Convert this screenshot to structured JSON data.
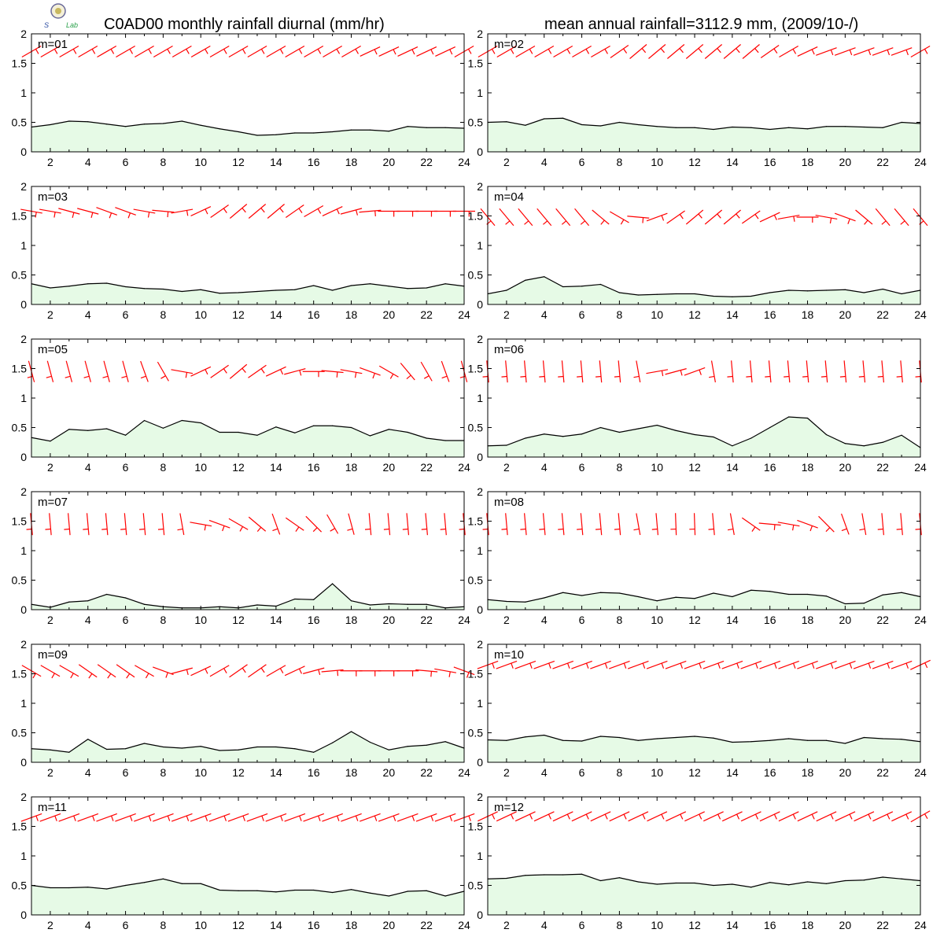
{
  "header": {
    "title_left": "C0AD00 monthly rainfall diurnal (mm/hr)",
    "title_right": "mean annual rainfall=3112.9 mm, (2009/10-/)",
    "logo_text": "Lab"
  },
  "colors": {
    "fill": "#e6fae6",
    "line": "#000000",
    "wind": "#ff0000",
    "frame": "#000000"
  },
  "chart_data": [
    {
      "type": "area",
      "label": "m=01",
      "x": [
        1,
        2,
        3,
        4,
        5,
        6,
        7,
        8,
        9,
        10,
        11,
        12,
        13,
        14,
        15,
        16,
        17,
        18,
        19,
        20,
        21,
        22,
        23,
        24
      ],
      "values": [
        0.42,
        0.46,
        0.52,
        0.51,
        0.47,
        0.43,
        0.47,
        0.48,
        0.52,
        0.45,
        0.39,
        0.34,
        0.28,
        0.29,
        0.32,
        0.32,
        0.34,
        0.37,
        0.37,
        0.35,
        0.43,
        0.41,
        0.41,
        0.4
      ],
      "wind_dir": [
        60,
        60,
        60,
        60,
        60,
        60,
        60,
        60,
        60,
        60,
        60,
        60,
        60,
        60,
        60,
        60,
        60,
        60,
        65,
        65,
        65,
        65,
        65,
        60
      ],
      "wind_y": 1.7,
      "xlim": [
        1,
        24
      ],
      "ylim": [
        0,
        2
      ]
    },
    {
      "type": "area",
      "label": "m=02",
      "x": [
        1,
        2,
        3,
        4,
        5,
        6,
        7,
        8,
        9,
        10,
        11,
        12,
        13,
        14,
        15,
        16,
        17,
        18,
        19,
        20,
        21,
        22,
        23,
        24
      ],
      "values": [
        0.5,
        0.51,
        0.45,
        0.56,
        0.57,
        0.46,
        0.44,
        0.5,
        0.46,
        0.43,
        0.41,
        0.41,
        0.38,
        0.42,
        0.41,
        0.38,
        0.41,
        0.39,
        0.43,
        0.43,
        0.42,
        0.41,
        0.5,
        0.48
      ],
      "wind_dir": [
        60,
        60,
        60,
        60,
        60,
        60,
        60,
        55,
        50,
        50,
        50,
        50,
        50,
        50,
        50,
        55,
        60,
        65,
        70,
        70,
        70,
        70,
        70,
        60
      ],
      "wind_y": 1.7,
      "xlim": [
        1,
        24
      ],
      "ylim": [
        0,
        2
      ]
    },
    {
      "type": "area",
      "label": "m=03",
      "x": [
        1,
        2,
        3,
        4,
        5,
        6,
        7,
        8,
        9,
        10,
        11,
        12,
        13,
        14,
        15,
        16,
        17,
        18,
        19,
        20,
        21,
        22,
        23,
        24
      ],
      "values": [
        0.35,
        0.28,
        0.31,
        0.35,
        0.36,
        0.3,
        0.27,
        0.26,
        0.22,
        0.25,
        0.19,
        0.2,
        0.22,
        0.24,
        0.25,
        0.32,
        0.24,
        0.32,
        0.35,
        0.31,
        0.27,
        0.28,
        0.35,
        0.31
      ],
      "wind_dir": [
        100,
        100,
        105,
        105,
        110,
        110,
        100,
        95,
        80,
        65,
        55,
        50,
        50,
        50,
        55,
        60,
        65,
        75,
        85,
        90,
        90,
        90,
        90,
        90
      ],
      "wind_y": 1.58,
      "xlim": [
        1,
        24
      ],
      "ylim": [
        0,
        2
      ]
    },
    {
      "type": "area",
      "label": "m=04",
      "x": [
        1,
        2,
        3,
        4,
        5,
        6,
        7,
        8,
        9,
        10,
        11,
        12,
        13,
        14,
        15,
        16,
        17,
        18,
        19,
        20,
        21,
        22,
        23,
        24
      ],
      "values": [
        0.18,
        0.24,
        0.41,
        0.47,
        0.3,
        0.31,
        0.34,
        0.2,
        0.16,
        0.17,
        0.18,
        0.18,
        0.14,
        0.13,
        0.14,
        0.2,
        0.24,
        0.23,
        0.24,
        0.25,
        0.2,
        0.26,
        0.18,
        0.24
      ],
      "wind_dir": [
        140,
        140,
        140,
        140,
        140,
        140,
        130,
        120,
        95,
        70,
        55,
        50,
        50,
        50,
        55,
        65,
        80,
        90,
        100,
        110,
        130,
        140,
        140,
        140
      ],
      "wind_y": 1.48,
      "xlim": [
        1,
        24
      ],
      "ylim": [
        0,
        2
      ]
    },
    {
      "type": "area",
      "label": "m=05",
      "x": [
        1,
        2,
        3,
        4,
        5,
        6,
        7,
        8,
        9,
        10,
        11,
        12,
        13,
        14,
        15,
        16,
        17,
        18,
        19,
        20,
        21,
        22,
        23,
        24
      ],
      "values": [
        0.33,
        0.27,
        0.47,
        0.45,
        0.48,
        0.37,
        0.62,
        0.49,
        0.62,
        0.58,
        0.42,
        0.42,
        0.37,
        0.51,
        0.41,
        0.53,
        0.53,
        0.5,
        0.36,
        0.47,
        0.42,
        0.32,
        0.28,
        0.28
      ],
      "wind_dir": [
        165,
        165,
        165,
        165,
        165,
        165,
        160,
        150,
        100,
        65,
        55,
        50,
        55,
        65,
        75,
        90,
        95,
        100,
        110,
        120,
        140,
        150,
        160,
        165
      ],
      "wind_y": 1.45,
      "xlim": [
        1,
        24
      ],
      "ylim": [
        0,
        2
      ]
    },
    {
      "type": "area",
      "label": "m=06",
      "x": [
        1,
        2,
        3,
        4,
        5,
        6,
        7,
        8,
        9,
        10,
        11,
        12,
        13,
        14,
        15,
        16,
        17,
        18,
        19,
        20,
        21,
        22,
        23,
        24
      ],
      "values": [
        0.19,
        0.2,
        0.32,
        0.39,
        0.35,
        0.39,
        0.5,
        0.42,
        0.48,
        0.54,
        0.45,
        0.38,
        0.34,
        0.19,
        0.32,
        0.5,
        0.68,
        0.66,
        0.38,
        0.23,
        0.19,
        0.25,
        0.37,
        0.16
      ],
      "wind_dir": [
        175,
        175,
        175,
        175,
        175,
        175,
        175,
        175,
        170,
        80,
        75,
        70,
        170,
        175,
        175,
        175,
        175,
        175,
        175,
        175,
        175,
        175,
        175,
        175
      ],
      "wind_y": 1.45,
      "xlim": [
        1,
        24
      ],
      "ylim": [
        0,
        2
      ]
    },
    {
      "type": "area",
      "label": "m=07",
      "x": [
        1,
        2,
        3,
        4,
        5,
        6,
        7,
        8,
        9,
        10,
        11,
        12,
        13,
        14,
        15,
        16,
        17,
        18,
        19,
        20,
        21,
        22,
        23,
        24
      ],
      "values": [
        0.09,
        0.04,
        0.13,
        0.15,
        0.26,
        0.2,
        0.09,
        0.05,
        0.03,
        0.03,
        0.05,
        0.03,
        0.08,
        0.06,
        0.18,
        0.17,
        0.44,
        0.15,
        0.08,
        0.1,
        0.09,
        0.09,
        0.03,
        0.05
      ],
      "wind_dir": [
        175,
        175,
        175,
        175,
        175,
        175,
        175,
        175,
        170,
        100,
        110,
        120,
        130,
        160,
        125,
        135,
        150,
        165,
        175,
        175,
        175,
        175,
        175,
        175
      ],
      "wind_y": 1.45,
      "xlim": [
        1,
        24
      ],
      "ylim": [
        0,
        2
      ]
    },
    {
      "type": "area",
      "label": "m=08",
      "x": [
        1,
        2,
        3,
        4,
        5,
        6,
        7,
        8,
        9,
        10,
        11,
        12,
        13,
        14,
        15,
        16,
        17,
        18,
        19,
        20,
        21,
        22,
        23,
        24
      ],
      "values": [
        0.17,
        0.14,
        0.13,
        0.2,
        0.29,
        0.24,
        0.29,
        0.28,
        0.22,
        0.15,
        0.21,
        0.19,
        0.28,
        0.22,
        0.33,
        0.31,
        0.26,
        0.26,
        0.23,
        0.1,
        0.11,
        0.25,
        0.29,
        0.22
      ],
      "wind_dir": [
        175,
        175,
        175,
        175,
        175,
        175,
        175,
        175,
        170,
        175,
        178,
        178,
        175,
        170,
        125,
        95,
        100,
        110,
        135,
        160,
        170,
        175,
        175,
        175
      ],
      "wind_y": 1.45,
      "xlim": [
        1,
        24
      ],
      "ylim": [
        0,
        2
      ]
    },
    {
      "type": "area",
      "label": "m=09",
      "x": [
        1,
        2,
        3,
        4,
        5,
        6,
        7,
        8,
        9,
        10,
        11,
        12,
        13,
        14,
        15,
        16,
        17,
        18,
        19,
        20,
        21,
        22,
        23,
        24
      ],
      "values": [
        0.23,
        0.21,
        0.17,
        0.39,
        0.22,
        0.23,
        0.32,
        0.26,
        0.24,
        0.27,
        0.2,
        0.21,
        0.26,
        0.26,
        0.23,
        0.17,
        0.33,
        0.52,
        0.34,
        0.21,
        0.27,
        0.29,
        0.35,
        0.24
      ],
      "wind_dir": [
        120,
        120,
        120,
        125,
        125,
        125,
        120,
        110,
        75,
        65,
        60,
        55,
        55,
        60,
        65,
        75,
        85,
        90,
        90,
        90,
        90,
        95,
        100,
        110
      ],
      "wind_y": 1.55,
      "xlim": [
        1,
        24
      ],
      "ylim": [
        0,
        2
      ]
    },
    {
      "type": "area",
      "label": "m=10",
      "x": [
        1,
        2,
        3,
        4,
        5,
        6,
        7,
        8,
        9,
        10,
        11,
        12,
        13,
        14,
        15,
        16,
        17,
        18,
        19,
        20,
        21,
        22,
        23,
        24
      ],
      "values": [
        0.38,
        0.37,
        0.43,
        0.46,
        0.37,
        0.36,
        0.44,
        0.42,
        0.37,
        0.4,
        0.42,
        0.44,
        0.41,
        0.34,
        0.35,
        0.37,
        0.4,
        0.37,
        0.37,
        0.32,
        0.42,
        0.4,
        0.39,
        0.35
      ],
      "wind_dir": [
        70,
        70,
        70,
        70,
        70,
        70,
        70,
        70,
        70,
        70,
        70,
        70,
        70,
        70,
        70,
        70,
        70,
        70,
        70,
        70,
        70,
        70,
        70,
        65
      ],
      "wind_y": 1.65,
      "xlim": [
        1,
        24
      ],
      "ylim": [
        0,
        2
      ]
    },
    {
      "type": "area",
      "label": "m=11",
      "x": [
        1,
        2,
        3,
        4,
        5,
        6,
        7,
        8,
        9,
        10,
        11,
        12,
        13,
        14,
        15,
        16,
        17,
        18,
        19,
        20,
        21,
        22,
        23,
        24
      ],
      "values": [
        0.5,
        0.46,
        0.46,
        0.47,
        0.44,
        0.5,
        0.55,
        0.61,
        0.53,
        0.53,
        0.42,
        0.41,
        0.41,
        0.39,
        0.42,
        0.42,
        0.38,
        0.43,
        0.37,
        0.32,
        0.4,
        0.41,
        0.32,
        0.4
      ],
      "wind_dir": [
        70,
        70,
        70,
        70,
        70,
        70,
        70,
        70,
        70,
        70,
        70,
        70,
        70,
        70,
        70,
        70,
        70,
        70,
        70,
        70,
        70,
        70,
        70,
        70
      ],
      "wind_y": 1.65,
      "xlim": [
        1,
        24
      ],
      "ylim": [
        0,
        2
      ]
    },
    {
      "type": "area",
      "label": "m=12",
      "x": [
        1,
        2,
        3,
        4,
        5,
        6,
        7,
        8,
        9,
        10,
        11,
        12,
        13,
        14,
        15,
        16,
        17,
        18,
        19,
        20,
        21,
        22,
        23,
        24
      ],
      "values": [
        0.61,
        0.62,
        0.67,
        0.68,
        0.68,
        0.69,
        0.58,
        0.63,
        0.56,
        0.52,
        0.54,
        0.54,
        0.5,
        0.52,
        0.47,
        0.55,
        0.51,
        0.56,
        0.53,
        0.58,
        0.59,
        0.64,
        0.61,
        0.58
      ],
      "wind_dir": [
        65,
        65,
        65,
        65,
        65,
        65,
        65,
        65,
        65,
        65,
        65,
        65,
        65,
        65,
        65,
        65,
        65,
        65,
        65,
        65,
        65,
        65,
        65,
        60
      ],
      "wind_y": 1.67,
      "xlim": [
        1,
        24
      ],
      "ylim": [
        0,
        2
      ]
    }
  ],
  "axes": {
    "yticks": [
      "0",
      "0.5",
      "1",
      "1.5",
      "2"
    ],
    "xticks": [
      "2",
      "4",
      "6",
      "8",
      "10",
      "12",
      "14",
      "16",
      "18",
      "20",
      "22",
      "24"
    ]
  }
}
